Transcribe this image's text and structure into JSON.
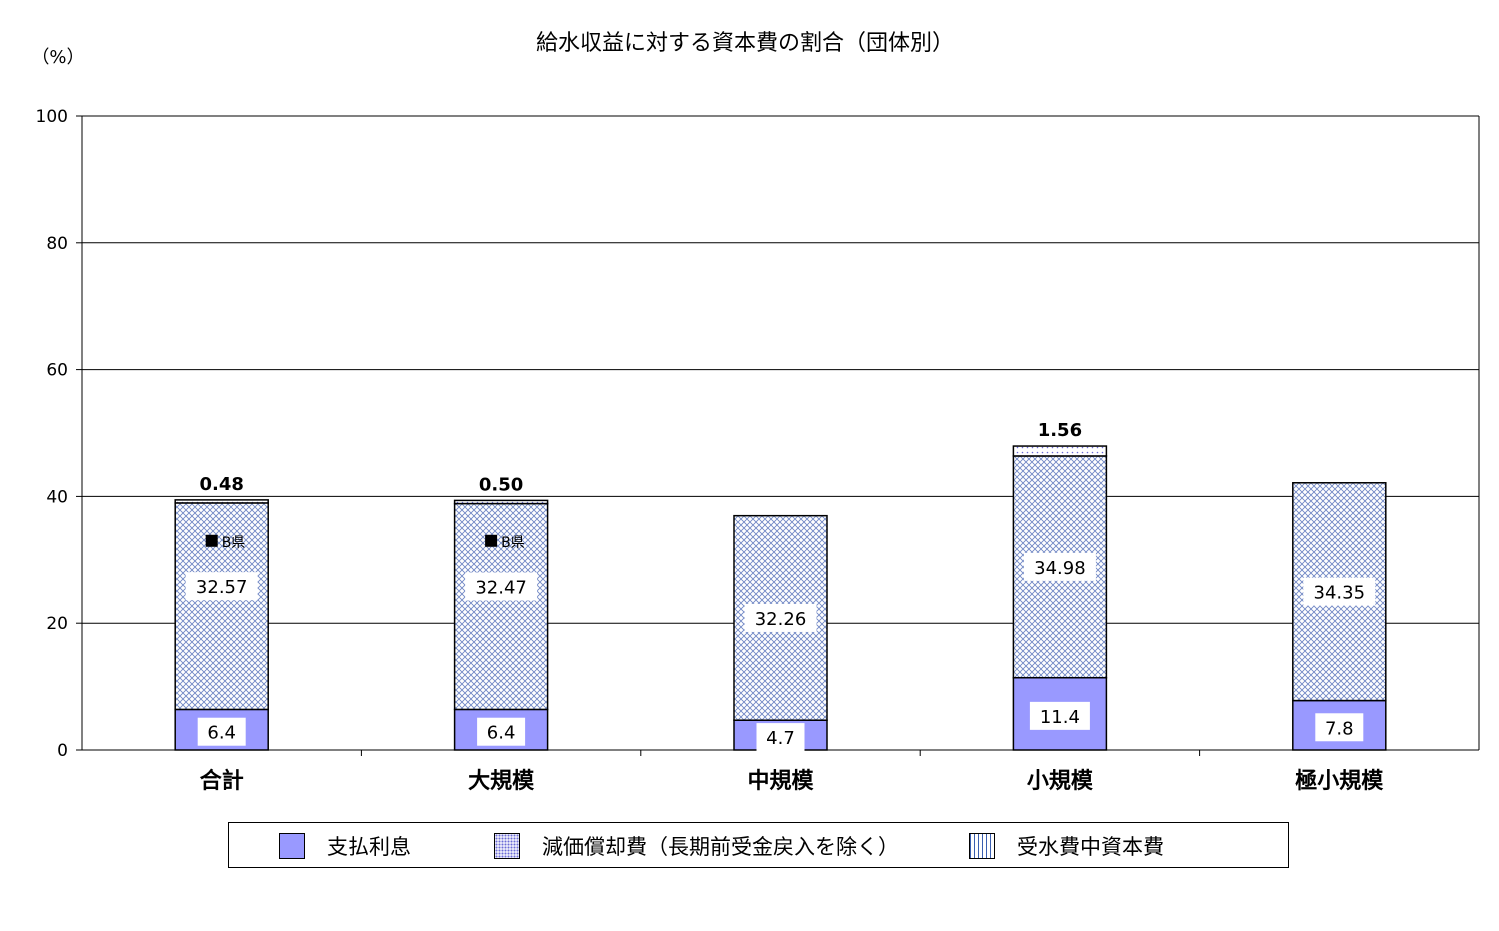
{
  "chart_data": {
    "type": "bar",
    "stacked": true,
    "title": "給水収益に対する資本費の割合（団体別）",
    "ylabel": "（%）",
    "ylim": [
      0,
      100
    ],
    "yticks": [
      0,
      20,
      40,
      60,
      80,
      100
    ],
    "grid": true,
    "legend_position": "bottom",
    "categories": [
      "合計",
      "大規模",
      "中規模",
      "小規模",
      "極小規模"
    ],
    "series": [
      {
        "name": "支払利息",
        "values": [
          6.4,
          6.4,
          4.7,
          11.4,
          7.8
        ],
        "labels": [
          "6.4",
          "6.4",
          "4.7",
          "11.4",
          "7.8"
        ],
        "color": "#9999ff"
      },
      {
        "name": "減価償却費（長期前受金戻入を除く）",
        "values": [
          32.57,
          32.47,
          32.26,
          34.98,
          34.35
        ],
        "labels": [
          "32.57",
          "32.47",
          "32.26",
          "34.98",
          "34.35"
        ],
        "color": "#6b6bd6"
      },
      {
        "name": "受水費中資本費",
        "values": [
          0.48,
          0.5,
          0,
          1.56,
          0
        ],
        "labels": [
          "0.48",
          "0.50",
          "",
          "1.56",
          ""
        ],
        "color": "#3a5fb0"
      }
    ],
    "markers": [
      {
        "category": "合計",
        "value": 33,
        "label": "B県"
      },
      {
        "category": "大規模",
        "value": 33,
        "label": "B県"
      }
    ]
  }
}
